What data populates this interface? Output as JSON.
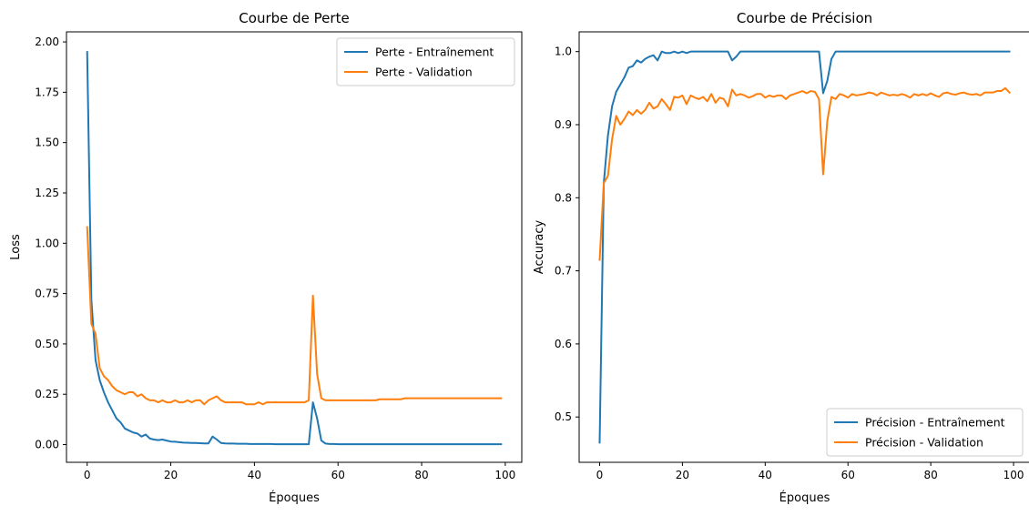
{
  "colors": {
    "train": "#1f77b4",
    "validation": "#ff7f0e"
  },
  "chart_data": [
    {
      "type": "line",
      "title": "Courbe de Perte",
      "xlabel": "Époques",
      "ylabel": "Loss",
      "xlim": [
        -4.95,
        103.95
      ],
      "ylim": [
        -0.088,
        2.05
      ],
      "xticks": [
        0,
        20,
        40,
        60,
        80,
        100
      ],
      "yticks": [
        0.0,
        0.25,
        0.5,
        0.75,
        1.0,
        1.25,
        1.5,
        1.75,
        2.0
      ],
      "ytick_labels": [
        "0.00",
        "0.25",
        "0.50",
        "0.75",
        "1.00",
        "1.25",
        "1.50",
        "1.75",
        "2.00"
      ],
      "grid": false,
      "legend_position": "upper right",
      "series": [
        {
          "name": "Perte - Entraînement",
          "color_key": "train",
          "x": [
            0,
            1,
            2,
            3,
            4,
            5,
            6,
            7,
            8,
            9,
            10,
            11,
            12,
            13,
            14,
            15,
            16,
            17,
            18,
            19,
            20,
            21,
            22,
            23,
            24,
            25,
            26,
            27,
            28,
            29,
            30,
            31,
            32,
            33,
            34,
            35,
            36,
            37,
            38,
            39,
            40,
            41,
            42,
            43,
            44,
            45,
            46,
            47,
            48,
            49,
            50,
            51,
            52,
            53,
            54,
            55,
            56,
            57,
            58,
            59,
            60,
            61,
            62,
            63,
            64,
            65,
            66,
            67,
            68,
            69,
            70,
            71,
            72,
            73,
            74,
            75,
            76,
            77,
            78,
            79,
            80,
            81,
            82,
            83,
            84,
            85,
            86,
            87,
            88,
            89,
            90,
            91,
            92,
            93,
            94,
            95,
            96,
            97,
            98,
            99
          ],
          "y": [
            1.95,
            0.72,
            0.42,
            0.32,
            0.26,
            0.21,
            0.17,
            0.13,
            0.11,
            0.08,
            0.07,
            0.06,
            0.055,
            0.04,
            0.05,
            0.03,
            0.025,
            0.022,
            0.025,
            0.02,
            0.015,
            0.014,
            0.012,
            0.01,
            0.009,
            0.008,
            0.008,
            0.007,
            0.006,
            0.006,
            0.04,
            0.025,
            0.008,
            0.006,
            0.005,
            0.005,
            0.004,
            0.004,
            0.004,
            0.003,
            0.003,
            0.003,
            0.003,
            0.003,
            0.003,
            0.002,
            0.002,
            0.002,
            0.002,
            0.002,
            0.002,
            0.002,
            0.002,
            0.002,
            0.21,
            0.13,
            0.02,
            0.005,
            0.003,
            0.003,
            0.002,
            0.002,
            0.002,
            0.002,
            0.002,
            0.002,
            0.002,
            0.002,
            0.002,
            0.002,
            0.002,
            0.002,
            0.002,
            0.002,
            0.002,
            0.002,
            0.002,
            0.002,
            0.002,
            0.002,
            0.002,
            0.002,
            0.002,
            0.002,
            0.002,
            0.002,
            0.002,
            0.002,
            0.002,
            0.002,
            0.002,
            0.002,
            0.002,
            0.002,
            0.002,
            0.002,
            0.002,
            0.002,
            0.002,
            0.002
          ]
        },
        {
          "name": "Perte - Validation",
          "color_key": "validation",
          "x": [
            0,
            1,
            2,
            3,
            4,
            5,
            6,
            7,
            8,
            9,
            10,
            11,
            12,
            13,
            14,
            15,
            16,
            17,
            18,
            19,
            20,
            21,
            22,
            23,
            24,
            25,
            26,
            27,
            28,
            29,
            30,
            31,
            32,
            33,
            34,
            35,
            36,
            37,
            38,
            39,
            40,
            41,
            42,
            43,
            44,
            45,
            46,
            47,
            48,
            49,
            50,
            51,
            52,
            53,
            54,
            55,
            56,
            57,
            58,
            59,
            60,
            61,
            62,
            63,
            64,
            65,
            66,
            67,
            68,
            69,
            70,
            71,
            72,
            73,
            74,
            75,
            76,
            77,
            78,
            79,
            80,
            81,
            82,
            83,
            84,
            85,
            86,
            87,
            88,
            89,
            90,
            91,
            92,
            93,
            94,
            95,
            96,
            97,
            98,
            99
          ],
          "y": [
            1.08,
            0.6,
            0.55,
            0.38,
            0.34,
            0.32,
            0.29,
            0.27,
            0.26,
            0.25,
            0.26,
            0.26,
            0.24,
            0.25,
            0.23,
            0.22,
            0.22,
            0.21,
            0.22,
            0.21,
            0.21,
            0.22,
            0.21,
            0.21,
            0.22,
            0.21,
            0.22,
            0.22,
            0.2,
            0.22,
            0.23,
            0.24,
            0.22,
            0.21,
            0.21,
            0.21,
            0.21,
            0.21,
            0.2,
            0.2,
            0.2,
            0.21,
            0.2,
            0.21,
            0.21,
            0.21,
            0.21,
            0.21,
            0.21,
            0.21,
            0.21,
            0.21,
            0.21,
            0.22,
            0.74,
            0.35,
            0.23,
            0.22,
            0.22,
            0.22,
            0.22,
            0.22,
            0.22,
            0.22,
            0.22,
            0.22,
            0.22,
            0.22,
            0.22,
            0.22,
            0.225,
            0.225,
            0.225,
            0.225,
            0.225,
            0.225,
            0.23,
            0.23,
            0.23,
            0.23,
            0.23,
            0.23,
            0.23,
            0.23,
            0.23,
            0.23,
            0.23,
            0.23,
            0.23,
            0.23,
            0.23,
            0.23,
            0.23,
            0.23,
            0.23,
            0.23,
            0.23,
            0.23,
            0.23,
            0.23
          ]
        }
      ]
    },
    {
      "type": "line",
      "title": "Courbe de Précision",
      "xlabel": "Époques",
      "ylabel": "Accuracy",
      "xlim": [
        -4.95,
        103.95
      ],
      "ylim": [
        0.438,
        1.027
      ],
      "xticks": [
        0,
        20,
        40,
        60,
        80,
        100
      ],
      "yticks": [
        0.5,
        0.6,
        0.7,
        0.8,
        0.9,
        1.0
      ],
      "ytick_labels": [
        "0.5",
        "0.6",
        "0.7",
        "0.8",
        "0.9",
        "1.0"
      ],
      "grid": false,
      "legend_position": "lower right",
      "series": [
        {
          "name": "Précision - Entraînement",
          "color_key": "train",
          "x": [
            0,
            1,
            2,
            3,
            4,
            5,
            6,
            7,
            8,
            9,
            10,
            11,
            12,
            13,
            14,
            15,
            16,
            17,
            18,
            19,
            20,
            21,
            22,
            23,
            24,
            25,
            26,
            27,
            28,
            29,
            30,
            31,
            32,
            33,
            34,
            35,
            36,
            37,
            38,
            39,
            40,
            41,
            42,
            43,
            44,
            45,
            46,
            47,
            48,
            49,
            50,
            51,
            52,
            53,
            54,
            55,
            56,
            57,
            58,
            59,
            60,
            61,
            62,
            63,
            64,
            65,
            66,
            67,
            68,
            69,
            70,
            71,
            72,
            73,
            74,
            75,
            76,
            77,
            78,
            79,
            80,
            81,
            82,
            83,
            84,
            85,
            86,
            87,
            88,
            89,
            90,
            91,
            92,
            93,
            94,
            95,
            96,
            97,
            98,
            99
          ],
          "y": [
            0.465,
            0.82,
            0.885,
            0.925,
            0.945,
            0.955,
            0.965,
            0.978,
            0.98,
            0.988,
            0.985,
            0.99,
            0.993,
            0.995,
            0.988,
            1.0,
            0.998,
            0.998,
            1.0,
            0.998,
            1.0,
            0.998,
            1.0,
            1.0,
            1.0,
            1.0,
            1.0,
            1.0,
            1.0,
            1.0,
            1.0,
            1.0,
            0.988,
            0.993,
            1.0,
            1.0,
            1.0,
            1.0,
            1.0,
            1.0,
            1.0,
            1.0,
            1.0,
            1.0,
            1.0,
            1.0,
            1.0,
            1.0,
            1.0,
            1.0,
            1.0,
            1.0,
            1.0,
            1.0,
            0.943,
            0.96,
            0.99,
            1.0,
            1.0,
            1.0,
            1.0,
            1.0,
            1.0,
            1.0,
            1.0,
            1.0,
            1.0,
            1.0,
            1.0,
            1.0,
            1.0,
            1.0,
            1.0,
            1.0,
            1.0,
            1.0,
            1.0,
            1.0,
            1.0,
            1.0,
            1.0,
            1.0,
            1.0,
            1.0,
            1.0,
            1.0,
            1.0,
            1.0,
            1.0,
            1.0,
            1.0,
            1.0,
            1.0,
            1.0,
            1.0,
            1.0,
            1.0,
            1.0,
            1.0,
            1.0
          ]
        },
        {
          "name": "Précision - Validation",
          "color_key": "validation",
          "x": [
            0,
            1,
            2,
            3,
            4,
            5,
            6,
            7,
            8,
            9,
            10,
            11,
            12,
            13,
            14,
            15,
            16,
            17,
            18,
            19,
            20,
            21,
            22,
            23,
            24,
            25,
            26,
            27,
            28,
            29,
            30,
            31,
            32,
            33,
            34,
            35,
            36,
            37,
            38,
            39,
            40,
            41,
            42,
            43,
            44,
            45,
            46,
            47,
            48,
            49,
            50,
            51,
            52,
            53,
            54,
            55,
            56,
            57,
            58,
            59,
            60,
            61,
            62,
            63,
            64,
            65,
            66,
            67,
            68,
            69,
            70,
            71,
            72,
            73,
            74,
            75,
            76,
            77,
            78,
            79,
            80,
            81,
            82,
            83,
            84,
            85,
            86,
            87,
            88,
            89,
            90,
            91,
            92,
            93,
            94,
            95,
            96,
            97,
            98,
            99
          ],
          "y": [
            0.715,
            0.82,
            0.83,
            0.88,
            0.912,
            0.9,
            0.908,
            0.918,
            0.913,
            0.92,
            0.915,
            0.92,
            0.93,
            0.922,
            0.925,
            0.935,
            0.928,
            0.92,
            0.938,
            0.937,
            0.94,
            0.928,
            0.94,
            0.937,
            0.935,
            0.938,
            0.932,
            0.942,
            0.93,
            0.937,
            0.935,
            0.925,
            0.948,
            0.94,
            0.942,
            0.94,
            0.937,
            0.939,
            0.942,
            0.942,
            0.937,
            0.94,
            0.938,
            0.94,
            0.94,
            0.935,
            0.94,
            0.942,
            0.944,
            0.946,
            0.943,
            0.946,
            0.945,
            0.935,
            0.832,
            0.905,
            0.938,
            0.935,
            0.942,
            0.94,
            0.937,
            0.942,
            0.94,
            0.941,
            0.942,
            0.944,
            0.943,
            0.94,
            0.944,
            0.942,
            0.94,
            0.941,
            0.94,
            0.942,
            0.94,
            0.937,
            0.942,
            0.94,
            0.942,
            0.94,
            0.943,
            0.94,
            0.938,
            0.943,
            0.944,
            0.942,
            0.941,
            0.943,
            0.944,
            0.942,
            0.941,
            0.942,
            0.94,
            0.944,
            0.944,
            0.944,
            0.946,
            0.946,
            0.95,
            0.944
          ]
        }
      ]
    }
  ]
}
